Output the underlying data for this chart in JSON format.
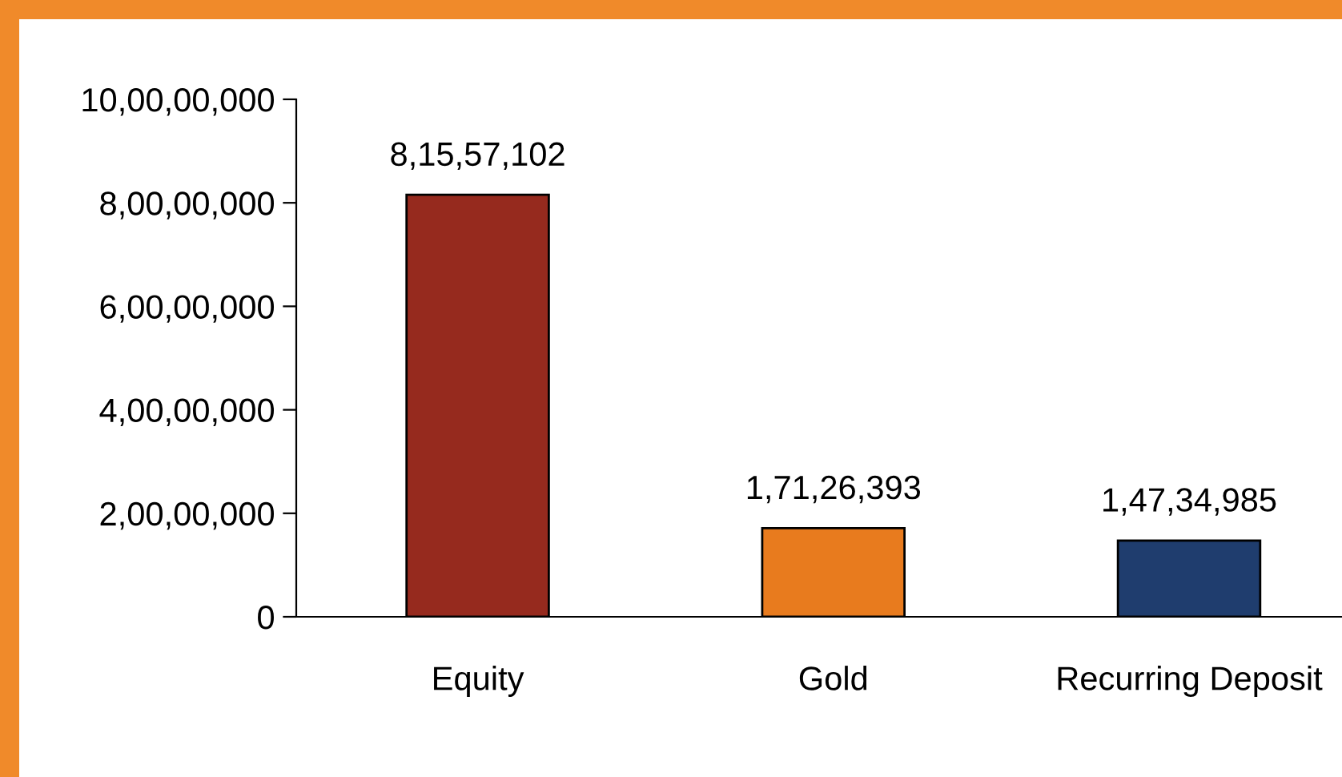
{
  "chart_data": {
    "type": "bar",
    "categories": [
      "Equity",
      "Gold",
      "Recurring Deposit"
    ],
    "values": [
      81557102,
      17126393,
      14734985
    ],
    "colors": [
      "#962a1e",
      "#e87b1e",
      "#1f3d6e"
    ],
    "value_labels": [
      "8,15,57,102",
      "1,71,26,393",
      "1,47,34,985"
    ],
    "ylim": [
      0,
      100000000
    ],
    "yticks": [
      {
        "value": 0,
        "label": "0"
      },
      {
        "value": 20000000,
        "label": "2,00,00,000"
      },
      {
        "value": 40000000,
        "label": "4,00,00,000"
      },
      {
        "value": 60000000,
        "label": "6,00,00,000"
      },
      {
        "value": 80000000,
        "label": "8,00,00,000"
      },
      {
        "value": 100000000,
        "label": "10,00,00,000"
      }
    ],
    "grid": false,
    "legend": false
  }
}
